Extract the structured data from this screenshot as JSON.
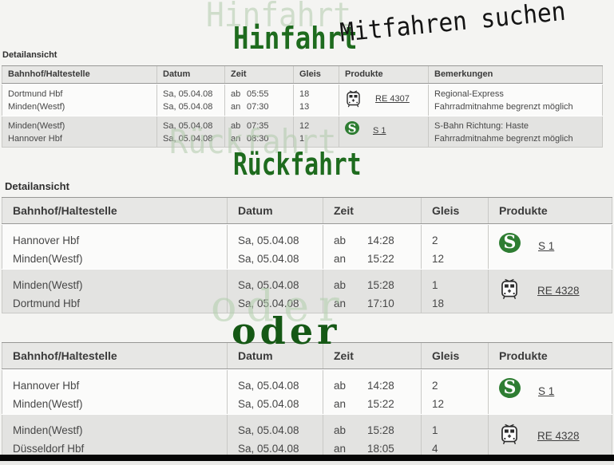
{
  "overlays": {
    "hinfahrt_ghost": "Hinfahrt",
    "hinfahrt": "Hinfahrt",
    "mitfahren_suchen": "Mitfahren suchen",
    "rueckfahrt_ghost": "Rückfahrt",
    "rueckfahrt": "Rückfahrt",
    "oder_ghost": "oder",
    "oder": "oder"
  },
  "colors": {
    "dark_green": "#1e6b1e",
    "ghost_green": "#b0cbac",
    "sbahn_green": "#2e7d32",
    "header_bg": "#e7e7e5",
    "row_alt_bg": "#e3e3e1",
    "page_bg": "#f4f4f2",
    "bottom_bar": "#060606"
  },
  "outbound": {
    "label": "Detailansicht",
    "columns": [
      "Bahnhof/Haltestelle",
      "Datum",
      "Zeit",
      "Gleis",
      "Produkte",
      "Bemerkungen"
    ],
    "rows": [
      {
        "station_from": "Dortmund Hbf",
        "station_to": "Minden(Westf)",
        "date_from": "Sa, 05.04.08",
        "date_to": "Sa, 05.04.08",
        "dep_label": "ab",
        "dep_time": "05:55",
        "arr_label": "an",
        "arr_time": "07:30",
        "gleis_from": "18",
        "gleis_to": "13",
        "product_icon": "regional-train-icon",
        "product_link": "RE 4307",
        "remark_1": "Regional-Express",
        "remark_2": "Fahrradmitnahme begrenzt möglich"
      },
      {
        "station_from": "Minden(Westf)",
        "station_to": "Hannover Hbf",
        "date_from": "Sa, 05.04.08",
        "date_to": "Sa, 05.04.08",
        "dep_label": "ab",
        "dep_time": "07:35",
        "arr_label": "an",
        "arr_time": "08:30",
        "gleis_from": "12",
        "gleis_to": "1",
        "product_icon": "s-bahn-icon",
        "product_link": "S 1",
        "s_glyph": "S",
        "remark_1": "S-Bahn Richtung: Haste",
        "remark_2": "Fahrradmitnahme begrenzt möglich"
      }
    ]
  },
  "return_trip": {
    "label": "Detailansicht",
    "columns": [
      "Bahnhof/Haltestelle",
      "Datum",
      "Zeit",
      "Gleis",
      "Produkte"
    ],
    "rows": [
      {
        "station_from": "Hannover Hbf",
        "station_to": "Minden(Westf)",
        "date_from": "Sa, 05.04.08",
        "date_to": "Sa, 05.04.08",
        "dep_label": "ab",
        "dep_time": "14:28",
        "arr_label": "an",
        "arr_time": "15:22",
        "gleis_from": "2",
        "gleis_to": "12",
        "product_icon": "s-bahn-icon",
        "product_link": "S 1",
        "s_glyph": "S"
      },
      {
        "station_from": "Minden(Westf)",
        "station_to": "Dortmund Hbf",
        "date_from": "Sa, 05.04.08",
        "date_to": "Sa, 05.04.08",
        "dep_label": "ab",
        "dep_time": "15:28",
        "arr_label": "an",
        "arr_time": "17:10",
        "gleis_from": "1",
        "gleis_to": "18",
        "product_icon": "regional-train-icon",
        "product_link": "RE 4328"
      }
    ]
  },
  "alternative": {
    "columns": [
      "Bahnhof/Haltestelle",
      "Datum",
      "Zeit",
      "Gleis",
      "Produkte"
    ],
    "rows": [
      {
        "station_from": "Hannover Hbf",
        "station_to": "Minden(Westf)",
        "date_from": "Sa, 05.04.08",
        "date_to": "Sa, 05.04.08",
        "dep_label": "ab",
        "dep_time": "14:28",
        "arr_label": "an",
        "arr_time": "15:22",
        "gleis_from": "2",
        "gleis_to": "12",
        "product_icon": "s-bahn-icon",
        "product_link": "S 1",
        "s_glyph": "S"
      },
      {
        "station_from": "Minden(Westf)",
        "station_to": "Düsseldorf Hbf",
        "date_from": "Sa, 05.04.08",
        "date_to": "Sa, 05.04.08",
        "dep_label": "ab",
        "dep_time": "15:28",
        "arr_label": "an",
        "arr_time": "18:05",
        "gleis_from": "1",
        "gleis_to": "4",
        "product_icon": "regional-train-icon",
        "product_link": "RE 4328"
      }
    ]
  }
}
